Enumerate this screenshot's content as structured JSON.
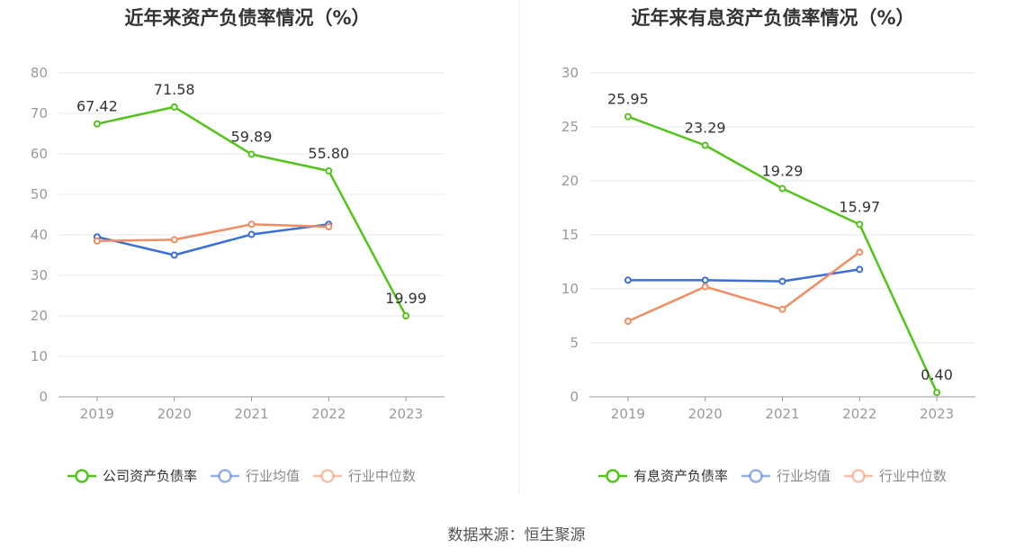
{
  "colors": {
    "company": "#52c41a",
    "industry_avg": "#3b6fd8",
    "industry_median": "#f28c62",
    "grid": "#e6e9f0",
    "axis": "#999999"
  },
  "source": "数据来源：恒生聚源",
  "chart_data": [
    {
      "type": "line",
      "title": "近年来资产负债率情况（%）",
      "categories": [
        "2019",
        "2020",
        "2021",
        "2022",
        "2023"
      ],
      "ylim": [
        0,
        80
      ],
      "yticks": [
        0,
        10,
        20,
        30,
        40,
        50,
        60,
        70,
        80
      ],
      "grid": true,
      "legend_position": "bottom",
      "series": [
        {
          "name": "公司资产负债率",
          "color": "#52c41a",
          "values": [
            67.42,
            71.58,
            59.89,
            55.8,
            19.99
          ],
          "labels": [
            "67.42",
            "71.58",
            "59.89",
            "55.80",
            "19.99"
          ],
          "active": true
        },
        {
          "name": "行业均值",
          "color": "#3b6fd8",
          "values": [
            39.5,
            35.0,
            40.1,
            42.6,
            null
          ],
          "active": false
        },
        {
          "name": "行业中位数",
          "color": "#f28c62",
          "values": [
            38.5,
            38.8,
            42.6,
            42.0,
            null
          ],
          "active": false
        }
      ]
    },
    {
      "type": "line",
      "title": "近年来有息资产负债率情况（%）",
      "categories": [
        "2019",
        "2020",
        "2021",
        "2022",
        "2023"
      ],
      "ylim": [
        0,
        30
      ],
      "yticks": [
        0,
        5,
        10,
        15,
        20,
        25,
        30
      ],
      "grid": true,
      "legend_position": "bottom",
      "series": [
        {
          "name": "有息资产负债率",
          "color": "#52c41a",
          "values": [
            25.95,
            23.29,
            19.29,
            15.97,
            0.4
          ],
          "labels": [
            "25.95",
            "23.29",
            "19.29",
            "15.97",
            "0.40"
          ],
          "active": true
        },
        {
          "name": "行业均值",
          "color": "#3b6fd8",
          "values": [
            10.8,
            10.8,
            10.7,
            11.8,
            null
          ],
          "active": false
        },
        {
          "name": "行业中位数",
          "color": "#f28c62",
          "values": [
            7.0,
            10.2,
            8.1,
            13.4,
            null
          ],
          "active": false
        }
      ]
    }
  ]
}
